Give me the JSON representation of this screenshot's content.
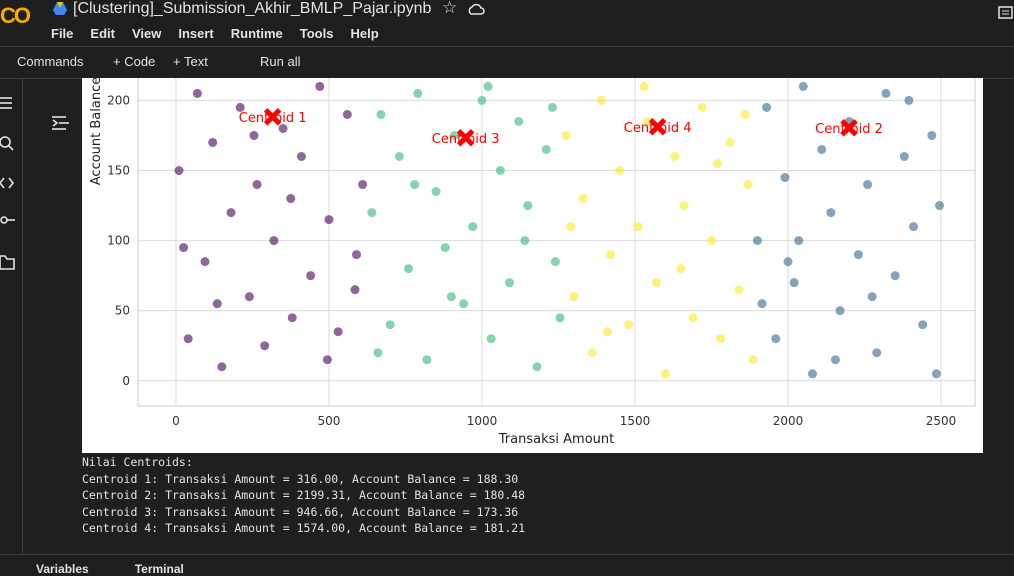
{
  "header": {
    "title": "[Clustering]_Submission_Akhir_BMLP_Pajar.ipynb",
    "menu": [
      "File",
      "Edit",
      "View",
      "Insert",
      "Runtime",
      "Tools",
      "Help"
    ]
  },
  "toolbar": [
    "Commands",
    "+ Code",
    "+ Text",
    "Run all"
  ],
  "chart_data": {
    "type": "scatter",
    "xlabel": "Transaksi Amount",
    "ylabel": "Account Balance",
    "xlim": [
      -124,
      2611
    ],
    "ylim": [
      -18,
      216
    ],
    "xticks": [
      0,
      500,
      1000,
      1500,
      2000,
      2500
    ],
    "yticks": [
      0,
      50,
      100,
      150,
      200
    ],
    "grid": true,
    "series": [
      {
        "color": "#440154",
        "x": [
          10,
          40,
          70,
          95,
          120,
          150,
          180,
          210,
          240,
          265,
          290,
          320,
          350,
          380,
          410,
          440,
          470,
          500,
          530,
          560,
          590,
          610,
          25,
          135,
          255,
          375,
          495,
          585
        ],
        "y": [
          150,
          30,
          205,
          85,
          170,
          10,
          120,
          195,
          60,
          140,
          25,
          100,
          180,
          45,
          160,
          75,
          210,
          115,
          35,
          190,
          90,
          140,
          95,
          55,
          175,
          130,
          15,
          65
        ]
      },
      {
        "color": "#35b779",
        "x": [
          640,
          670,
          700,
          730,
          760,
          790,
          820,
          850,
          880,
          910,
          940,
          970,
          1000,
          1030,
          1060,
          1090,
          1120,
          1150,
          1180,
          1210,
          1240,
          1255,
          660,
          780,
          900,
          1020,
          1140,
          1230
        ],
        "y": [
          120,
          190,
          40,
          160,
          80,
          205,
          15,
          135,
          95,
          175,
          55,
          110,
          200,
          30,
          150,
          70,
          185,
          125,
          10,
          165,
          85,
          45,
          20,
          140,
          60,
          210,
          100,
          195
        ]
      },
      {
        "color": "#fde725",
        "x": [
          1275,
          1300,
          1330,
          1360,
          1390,
          1420,
          1450,
          1480,
          1510,
          1540,
          1570,
          1600,
          1630,
          1660,
          1690,
          1720,
          1750,
          1780,
          1810,
          1840,
          1870,
          1885,
          1290,
          1410,
          1530,
          1650,
          1770,
          1860
        ],
        "y": [
          175,
          60,
          130,
          20,
          200,
          90,
          150,
          40,
          110,
          185,
          70,
          5,
          160,
          125,
          45,
          195,
          100,
          30,
          170,
          65,
          140,
          15,
          110,
          35,
          210,
          80,
          155,
          190
        ]
      },
      {
        "color": "#31688e",
        "x": [
          1900,
          1930,
          1960,
          1990,
          2020,
          2050,
          2080,
          2110,
          2140,
          2170,
          2200,
          2230,
          2260,
          2290,
          2320,
          2350,
          2380,
          2410,
          2440,
          2470,
          2495,
          1915,
          2035,
          2155,
          2275,
          2395,
          2485,
          2000
        ],
        "y": [
          100,
          195,
          30,
          145,
          70,
          210,
          5,
          165,
          120,
          50,
          185,
          90,
          140,
          20,
          205,
          75,
          160,
          110,
          40,
          175,
          125,
          55,
          100,
          15,
          60,
          200,
          5,
          85
        ]
      }
    ],
    "centroids": {
      "color": "#ff0000",
      "labels": [
        "Centroid 1",
        "Centroid 2",
        "Centroid 3",
        "Centroid 4"
      ],
      "x": [
        316.0,
        2199.31,
        946.66,
        1574.0
      ],
      "y": [
        188.3,
        180.48,
        173.36,
        181.21
      ]
    }
  },
  "output": {
    "lines": [
      "Nilai Centroids:",
      "Centroid 1: Transaksi Amount = 316.00, Account Balance = 188.30",
      "Centroid 2: Transaksi Amount = 2199.31, Account Balance = 180.48",
      "Centroid 3: Transaksi Amount = 946.66, Account Balance = 173.36",
      "Centroid 4: Transaksi Amount = 1574.00, Account Balance = 181.21"
    ]
  },
  "status_bar": [
    "Variables",
    "Terminal"
  ]
}
